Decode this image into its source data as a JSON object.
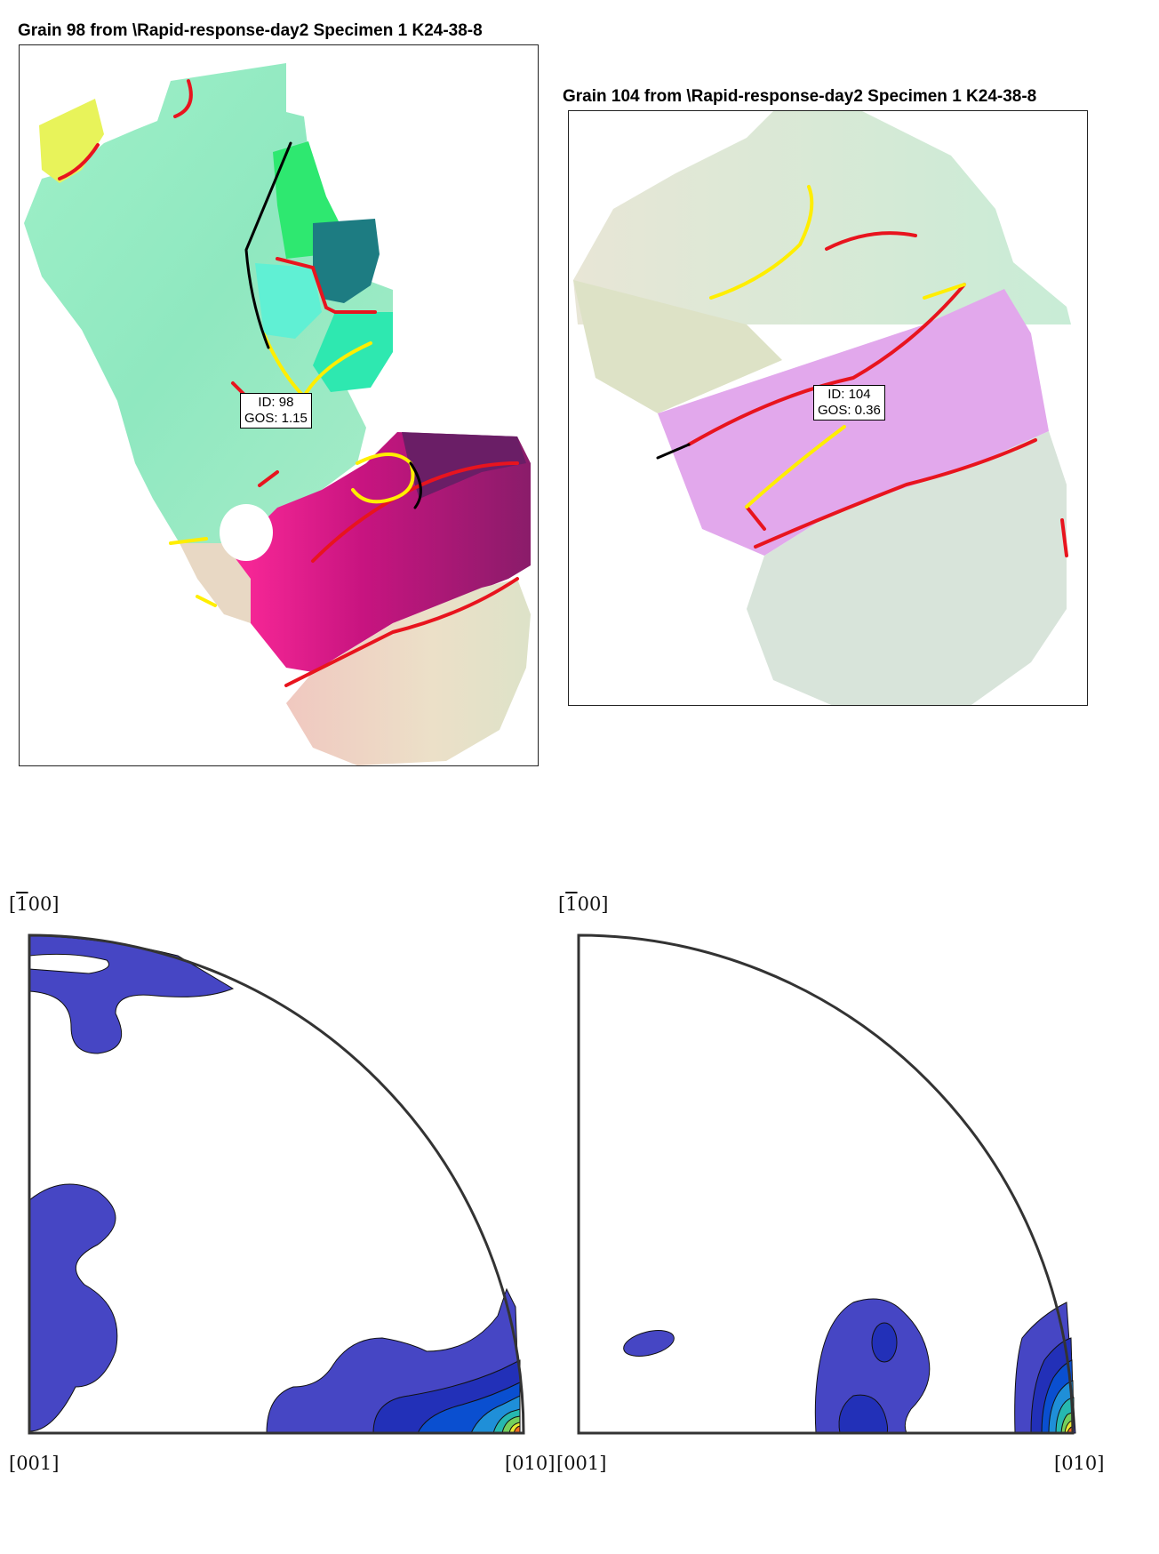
{
  "maps": [
    {
      "title": "Grain 98 from \\Rapid-response-day2 Specimen 1 K24-38-8",
      "id_label": "ID: 98",
      "gos_label": "GOS: 1.15"
    },
    {
      "title": "Grain 104 from \\Rapid-response-day2 Specimen 1 K24-38-8",
      "id_label": "ID: 104",
      "gos_label": "GOS: 0.36"
    }
  ],
  "pole_figures": [
    {
      "top_label": "[100]",
      "top_label_bar": "1",
      "top_label_rest": "00]",
      "origin_label": "[001]",
      "right_label": "[010]"
    },
    {
      "top_label": "[100]",
      "top_label_bar": "1",
      "top_label_rest": "00]",
      "origin_label": "[001]",
      "right_label": "[010]"
    }
  ],
  "colors": {
    "boundary_high": "#e8141e",
    "boundary_twin": "#ffee00",
    "boundary_low": "#000000",
    "contour_1": "#4646c4",
    "contour_2": "#2230b8",
    "contour_3": "#0a4fd0",
    "contour_4": "#1f8fd8",
    "contour_5": "#26b8b0",
    "contour_6": "#74cf5c",
    "contour_7": "#e8e832",
    "contour_8": "#f26a1e"
  }
}
